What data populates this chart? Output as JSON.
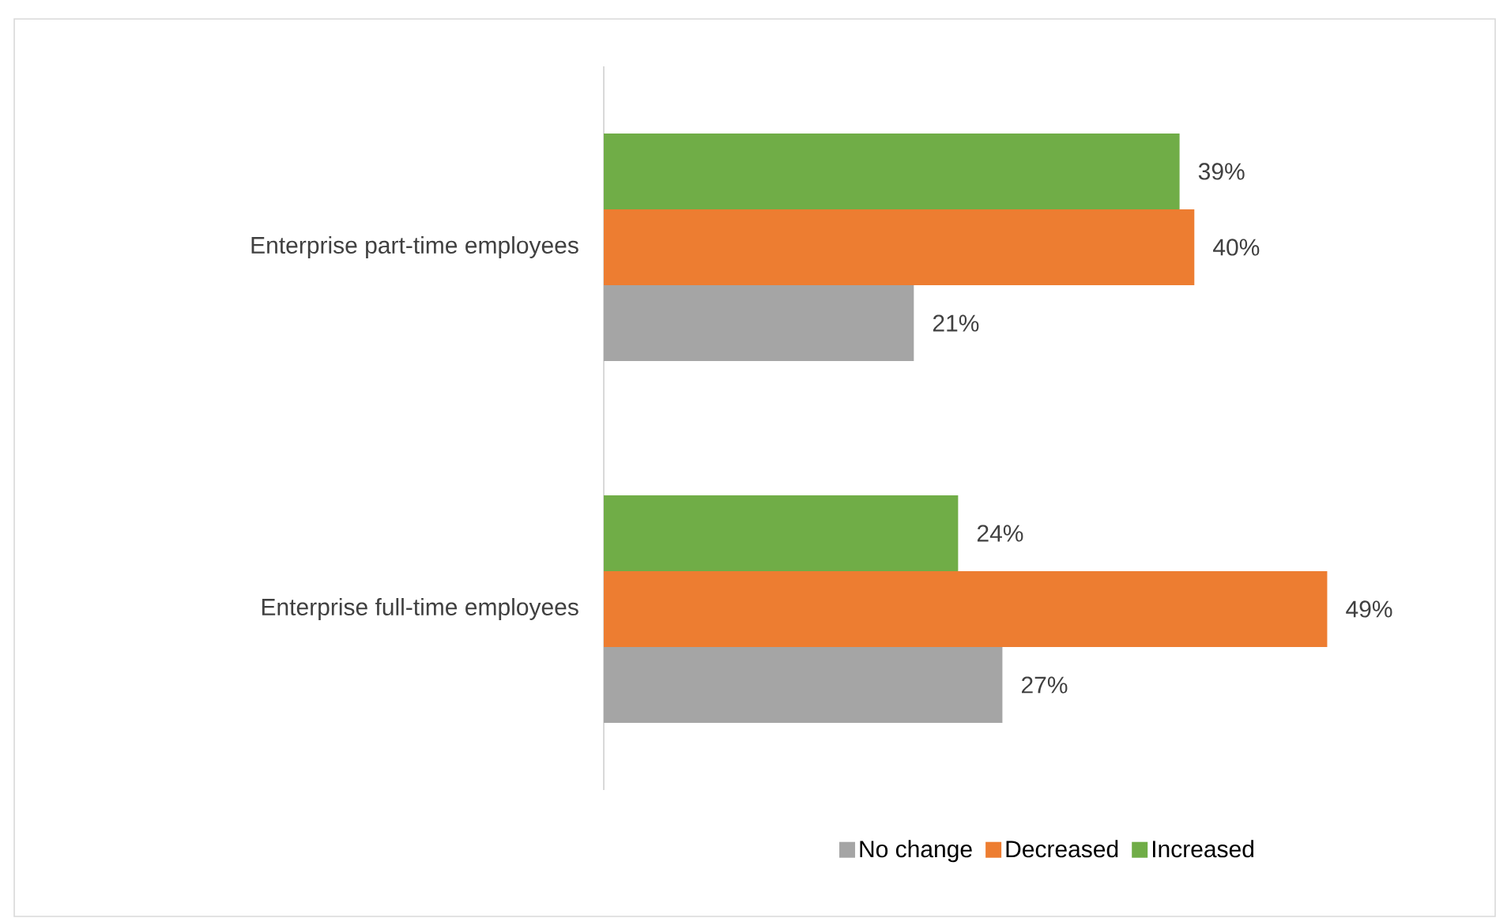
{
  "chart_data": {
    "type": "bar",
    "orientation": "horizontal",
    "categories": [
      "Enterprise part-time employees",
      "Enterprise full-time employees"
    ],
    "series": [
      {
        "name": "No change",
        "color": "#a5a5a5",
        "values": [
          21,
          27
        ],
        "value_labels": [
          "21%",
          "27%"
        ]
      },
      {
        "name": "Decreased",
        "color": "#ed7d31",
        "values": [
          40,
          49
        ],
        "value_labels": [
          "40%",
          "49%"
        ]
      },
      {
        "name": "Increased",
        "color": "#70ad47",
        "values": [
          39,
          24
        ],
        "value_labels": [
          "39%",
          "24%"
        ]
      }
    ],
    "legend": "bottom"
  }
}
